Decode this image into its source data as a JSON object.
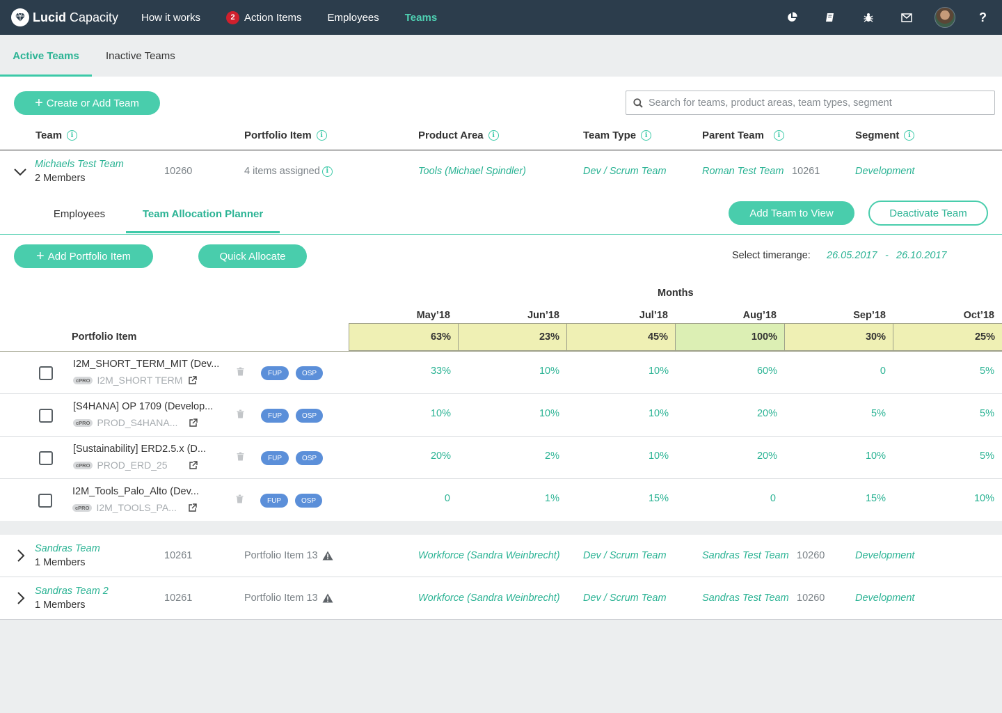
{
  "brand": {
    "bold": "Lucid",
    "light": " Capacity"
  },
  "nav": {
    "how_it_works": "How it works",
    "action_items": "Action Items",
    "action_items_badge": "2",
    "employees": "Employees",
    "teams": "Teams"
  },
  "tabs": {
    "active": "Active Teams",
    "inactive": "Inactive Teams"
  },
  "toolbar": {
    "create_label": "Create or Add Team",
    "search_placeholder": "Search for teams, product areas, team types, segment"
  },
  "columns": {
    "team": "Team",
    "portfolio_item": "Portfolio Item",
    "product_area": "Product Area",
    "team_type": "Team Type",
    "parent_team": "Parent Team",
    "segment": "Segment"
  },
  "teams": [
    {
      "name": "Michaels Test Team",
      "members": "2 Members",
      "id": "10260",
      "portfolio": "4 items assigned",
      "product_area": "Tools (Michael Spindler)",
      "team_type": "Dev / Scrum Team",
      "parent_team": "Roman Test Team",
      "parent_id": "10261",
      "segment": "Development"
    },
    {
      "name": "Sandras Team",
      "members": "1 Members",
      "id": "10261",
      "portfolio": "Portfolio Item 13",
      "product_area": "Workforce (Sandra Weinbrecht)",
      "team_type": "Dev / Scrum Team",
      "parent_team": "Sandras Test Team",
      "parent_id": "10260",
      "segment": "Development"
    },
    {
      "name": "Sandras Team 2",
      "members": "1 Members",
      "id": "10261",
      "portfolio": "Portfolio Item 13",
      "product_area": "Workforce (Sandra Weinbrecht)",
      "team_type": "Dev / Scrum Team",
      "parent_team": "Sandras Test Team",
      "parent_id": "10260",
      "segment": "Development"
    }
  ],
  "detail": {
    "subtab_employees": "Employees",
    "subtab_planner": "Team Allocation Planner",
    "add_team_view": "Add Team to View",
    "deactivate": "Deactivate Team",
    "add_portfolio": "Add Portfolio Item",
    "quick_allocate": "Quick Allocate",
    "timerange_label": "Select timerange:",
    "time_from": "26.05.2017",
    "time_sep": "-",
    "time_to": "26.10.2017"
  },
  "planner": {
    "months_label": "Months",
    "portfolio_header": "Portfolio Item",
    "months": [
      "May’18",
      "Jun’18",
      "Jul’18",
      "Aug’18",
      "Sep’18",
      "Oct’18"
    ],
    "totals": [
      "63%",
      "23%",
      "45%",
      "100%",
      "30%",
      "25%"
    ],
    "rows": [
      {
        "name": "I2M_SHORT_TERM_MIT (Dev...",
        "tag": "cPRO",
        "code": "I2M_SHORT TERM",
        "pill1": "FUP",
        "pill2": "OSP",
        "values": [
          "33%",
          "10%",
          "10%",
          "60%",
          "0",
          "5%"
        ]
      },
      {
        "name": "[S4HANA] OP 1709 (Develop...",
        "tag": "cPRO",
        "code": "PROD_S4HANA...",
        "pill1": "FUP",
        "pill2": "OSP",
        "values": [
          "10%",
          "10%",
          "10%",
          "20%",
          "5%",
          "5%"
        ]
      },
      {
        "name": "[Sustainability] ERD2.5.x (D...",
        "tag": "cPRO",
        "code": "PROD_ERD_25",
        "pill1": "FUP",
        "pill2": "OSP",
        "values": [
          "20%",
          "2%",
          "10%",
          "20%",
          "10%",
          "5%"
        ]
      },
      {
        "name": "I2M_Tools_Palo_Alto (Dev...",
        "tag": "cPRO",
        "code": "I2M_TOOLS_PA...",
        "pill1": "FUP",
        "pill2": "OSP",
        "values": [
          "0",
          "1%",
          "15%",
          "0",
          "15%",
          "10%"
        ]
      }
    ]
  }
}
